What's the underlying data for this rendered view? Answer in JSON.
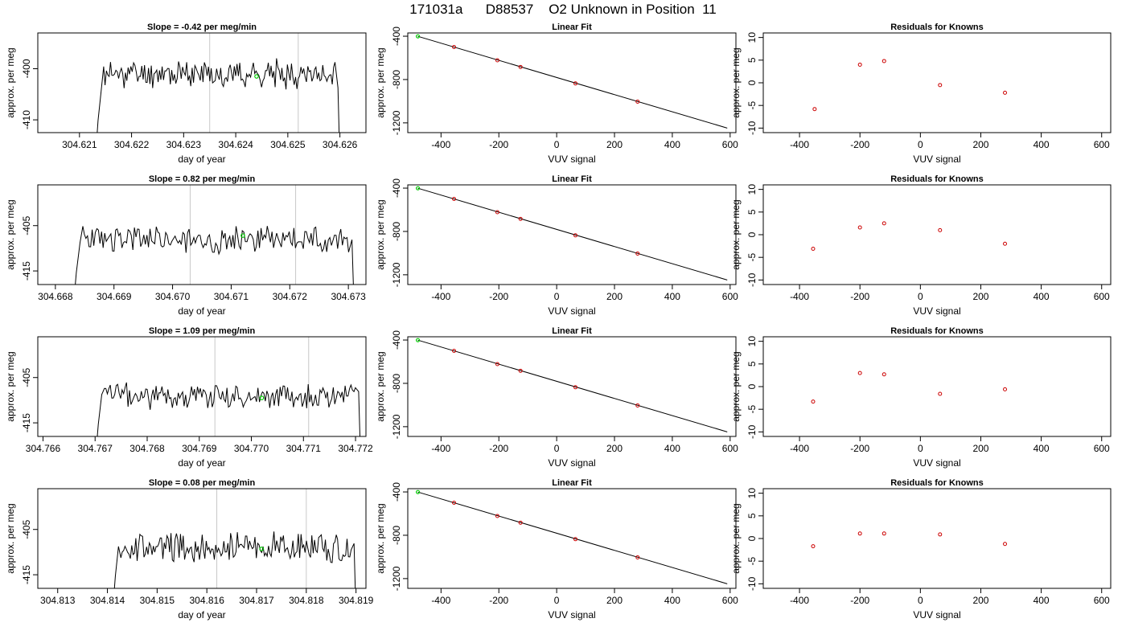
{
  "figure": {
    "title": "171031a      D88537    O2 Unknown in Position  11"
  },
  "colors": {
    "line": "#000000",
    "known_point": "#cc0000",
    "unknown_point": "#00cc00",
    "marker_line": "#c8c8c8"
  },
  "chart_data": [
    {
      "type": "line",
      "row": 0,
      "col": 0,
      "title": "Slope =  -0.42  per meg/min",
      "xlabel": "day of year",
      "ylabel": "approx. per meg",
      "xlim": [
        304.6202,
        304.6265
      ],
      "ylim": [
        -412.5,
        -393
      ],
      "xticks": [
        304.621,
        304.622,
        304.623,
        304.624,
        304.625,
        304.626
      ],
      "xtick_labels": [
        "304.621",
        "304.622",
        "304.623",
        "304.624",
        "304.625",
        "304.626"
      ],
      "yticks": [
        -400,
        -410
      ],
      "ytick_labels": [
        "-400",
        "-410"
      ],
      "trace": {
        "x_start": 304.6213,
        "x_end": 304.626,
        "baseline": -401,
        "amplitude": 2.2,
        "seed": 11
      },
      "vlines": [
        304.6235,
        304.6252
      ],
      "green_point": {
        "x": 304.6244,
        "y": -401.5
      }
    },
    {
      "type": "scatter",
      "row": 0,
      "col": 1,
      "title": "Linear Fit",
      "xlabel": "VUV signal",
      "ylabel": "approx. per meg",
      "xlim": [
        -515,
        620
      ],
      "ylim": [
        -1290,
        -370
      ],
      "xticks": [
        -400,
        -200,
        0,
        200,
        400,
        600
      ],
      "xtick_labels": [
        "-400",
        "-200",
        "0",
        "200",
        "400",
        "600"
      ],
      "yticks": [
        -400,
        -800,
        -1200
      ],
      "ytick_labels": [
        "-400",
        "-800",
        "-1200"
      ],
      "fit_line": {
        "x": [
          -480,
          590
        ],
        "y": [
          -401,
          -1248
        ]
      },
      "known_points": {
        "x": [
          -355,
          -205,
          -125,
          65,
          280
        ],
        "y": [
          -500,
          -622,
          -684,
          -836,
          -1004
        ]
      },
      "unknown_point": {
        "x": -480,
        "y": -401
      }
    },
    {
      "type": "scatter",
      "row": 0,
      "col": 2,
      "title": "Residuals for Knowns",
      "xlabel": "VUV signal",
      "ylabel": "approx. per meg",
      "xlim": [
        -520,
        630
      ],
      "ylim": [
        -11,
        11
      ],
      "xticks": [
        -400,
        -200,
        0,
        200,
        400,
        600
      ],
      "xtick_labels": [
        "-400",
        "-200",
        "0",
        "200",
        "400",
        "600"
      ],
      "yticks": [
        10,
        5,
        0,
        -5,
        -10
      ],
      "ytick_labels": [
        "10",
        "5",
        "0",
        "-5",
        "-10"
      ],
      "points": {
        "x": [
          -350,
          -200,
          -120,
          65,
          280
        ],
        "y": [
          -5.8,
          4.0,
          4.8,
          -0.5,
          -2.2
        ]
      }
    },
    {
      "type": "line",
      "row": 1,
      "col": 0,
      "title": "Slope =  0.82  per meg/min",
      "xlabel": "day of year",
      "ylabel": "approx. per meg",
      "xlim": [
        304.6677,
        304.6733
      ],
      "ylim": [
        -418,
        -396
      ],
      "xticks": [
        304.668,
        304.669,
        304.67,
        304.671,
        304.672,
        304.673
      ],
      "xtick_labels": [
        "304.668",
        "304.669",
        "304.670",
        "304.671",
        "304.672",
        "304.673"
      ],
      "yticks": [
        -405,
        -415
      ],
      "ytick_labels": [
        "-405",
        "-415"
      ],
      "trace": {
        "x_start": 304.6683,
        "x_end": 304.6731,
        "baseline": -408,
        "amplitude": 2.5,
        "seed": 23
      },
      "vlines": [
        304.6703,
        304.6721
      ],
      "green_point": {
        "x": 304.6712,
        "y": -407.2
      }
    },
    {
      "type": "scatter",
      "row": 1,
      "col": 1,
      "title": "Linear Fit",
      "xlabel": "VUV signal",
      "ylabel": "approx. per meg",
      "xlim": [
        -515,
        620
      ],
      "ylim": [
        -1290,
        -370
      ],
      "xticks": [
        -400,
        -200,
        0,
        200,
        400,
        600
      ],
      "xtick_labels": [
        "-400",
        "-200",
        "0",
        "200",
        "400",
        "600"
      ],
      "yticks": [
        -400,
        -800,
        -1200
      ],
      "ytick_labels": [
        "-400",
        "-800",
        "-1200"
      ],
      "fit_line": {
        "x": [
          -480,
          590
        ],
        "y": [
          -401,
          -1248
        ]
      },
      "known_points": {
        "x": [
          -355,
          -205,
          -125,
          65,
          280
        ],
        "y": [
          -500,
          -622,
          -684,
          -836,
          -1004
        ]
      },
      "unknown_point": {
        "x": -480,
        "y": -401
      }
    },
    {
      "type": "scatter",
      "row": 1,
      "col": 2,
      "title": "Residuals for Knowns",
      "xlabel": "VUV signal",
      "ylabel": "approx. per meg",
      "xlim": [
        -520,
        630
      ],
      "ylim": [
        -11,
        11
      ],
      "xticks": [
        -400,
        -200,
        0,
        200,
        400,
        600
      ],
      "xtick_labels": [
        "-400",
        "-200",
        "0",
        "200",
        "400",
        "600"
      ],
      "yticks": [
        10,
        5,
        0,
        -5,
        -10
      ],
      "ytick_labels": [
        "10",
        "5",
        "0",
        "-5",
        "-10"
      ],
      "points": {
        "x": [
          -355,
          -200,
          -120,
          65,
          280
        ],
        "y": [
          -3.1,
          1.6,
          2.5,
          1.0,
          -2.0
        ]
      }
    },
    {
      "type": "line",
      "row": 2,
      "col": 0,
      "title": "Slope =  1.09  per meg/min",
      "xlabel": "day of year",
      "ylabel": "approx. per meg",
      "xlim": [
        304.7659,
        304.7722
      ],
      "ylim": [
        -418,
        -396
      ],
      "xticks": [
        304.766,
        304.767,
        304.768,
        304.769,
        304.77,
        304.771,
        304.772
      ],
      "xtick_labels": [
        "304.766",
        "304.767",
        "304.768",
        "304.769",
        "304.770",
        "304.771",
        "304.772"
      ],
      "yticks": [
        -405,
        -415
      ],
      "ytick_labels": [
        "-405",
        "-415"
      ],
      "trace": {
        "x_start": 304.767,
        "x_end": 304.7721,
        "baseline": -409,
        "amplitude": 2.4,
        "seed": 37
      },
      "vlines": [
        304.7693,
        304.7711
      ],
      "green_point": {
        "x": 304.7702,
        "y": -409.5
      }
    },
    {
      "type": "scatter",
      "row": 2,
      "col": 1,
      "title": "Linear Fit",
      "xlabel": "VUV signal",
      "ylabel": "approx. per meg",
      "xlim": [
        -515,
        620
      ],
      "ylim": [
        -1290,
        -370
      ],
      "xticks": [
        -400,
        -200,
        0,
        200,
        400,
        600
      ],
      "xtick_labels": [
        "-400",
        "-200",
        "0",
        "200",
        "400",
        "600"
      ],
      "yticks": [
        -400,
        -800,
        -1200
      ],
      "ytick_labels": [
        "-400",
        "-800",
        "-1200"
      ],
      "fit_line": {
        "x": [
          -480,
          590
        ],
        "y": [
          -401,
          -1248
        ]
      },
      "known_points": {
        "x": [
          -355,
          -205,
          -125,
          65,
          280
        ],
        "y": [
          -500,
          -622,
          -684,
          -836,
          -1004
        ]
      },
      "unknown_point": {
        "x": -480,
        "y": -401
      }
    },
    {
      "type": "scatter",
      "row": 2,
      "col": 2,
      "title": "Residuals for Knowns",
      "xlabel": "VUV signal",
      "ylabel": "approx. per meg",
      "xlim": [
        -520,
        630
      ],
      "ylim": [
        -11,
        11
      ],
      "xticks": [
        -400,
        -200,
        0,
        200,
        400,
        600
      ],
      "xtick_labels": [
        "-400",
        "-200",
        "0",
        "200",
        "400",
        "600"
      ],
      "yticks": [
        10,
        5,
        0,
        -5,
        -10
      ],
      "ytick_labels": [
        "10",
        "5",
        "0",
        "-5",
        "-10"
      ],
      "points": {
        "x": [
          -355,
          -200,
          -120,
          65,
          280
        ],
        "y": [
          -3.3,
          3.0,
          2.7,
          -1.6,
          -0.6
        ]
      }
    },
    {
      "type": "line",
      "row": 3,
      "col": 0,
      "title": "Slope =  0.08  per meg/min",
      "xlabel": "day of year",
      "ylabel": "approx. per meg",
      "xlim": [
        304.8126,
        304.8192
      ],
      "ylim": [
        -418,
        -396
      ],
      "xticks": [
        304.813,
        304.814,
        304.815,
        304.816,
        304.817,
        304.818,
        304.819
      ],
      "xtick_labels": [
        "304.813",
        "304.814",
        "304.815",
        "304.816",
        "304.817",
        "304.818",
        "304.819"
      ],
      "yticks": [
        -405,
        -415
      ],
      "ytick_labels": [
        "-405",
        "-415"
      ],
      "trace": {
        "x_start": 304.8141,
        "x_end": 304.819,
        "baseline": -409,
        "amplitude": 2.8,
        "seed": 53
      },
      "vlines": [
        304.8162,
        304.818
      ],
      "green_point": {
        "x": 304.8171,
        "y": -409.3
      }
    },
    {
      "type": "scatter",
      "row": 3,
      "col": 1,
      "title": "Linear Fit",
      "xlabel": "VUV signal",
      "ylabel": "approx. per meg",
      "xlim": [
        -515,
        620
      ],
      "ylim": [
        -1290,
        -370
      ],
      "xticks": [
        -400,
        -200,
        0,
        200,
        400,
        600
      ],
      "xtick_labels": [
        "-400",
        "-200",
        "0",
        "200",
        "400",
        "600"
      ],
      "yticks": [
        -400,
        -800,
        -1200
      ],
      "ytick_labels": [
        "-400",
        "-800",
        "-1200"
      ],
      "fit_line": {
        "x": [
          -480,
          590
        ],
        "y": [
          -401,
          -1248
        ]
      },
      "known_points": {
        "x": [
          -355,
          -205,
          -125,
          65,
          280
        ],
        "y": [
          -500,
          -622,
          -684,
          -836,
          -1004
        ]
      },
      "unknown_point": {
        "x": -480,
        "y": -401
      }
    },
    {
      "type": "scatter",
      "row": 3,
      "col": 2,
      "title": "Residuals for Knowns",
      "xlabel": "VUV signal",
      "ylabel": "approx. per meg",
      "xlim": [
        -520,
        630
      ],
      "ylim": [
        -11,
        11
      ],
      "xticks": [
        -400,
        -200,
        0,
        200,
        400,
        600
      ],
      "xtick_labels": [
        "-400",
        "-200",
        "0",
        "200",
        "400",
        "600"
      ],
      "yticks": [
        10,
        5,
        0,
        -5,
        -10
      ],
      "ytick_labels": [
        "10",
        "5",
        "0",
        "-5",
        "-10"
      ],
      "points": {
        "x": [
          -355,
          -200,
          -120,
          65,
          280
        ],
        "y": [
          -1.7,
          1.1,
          1.1,
          0.9,
          -1.2
        ]
      }
    }
  ]
}
